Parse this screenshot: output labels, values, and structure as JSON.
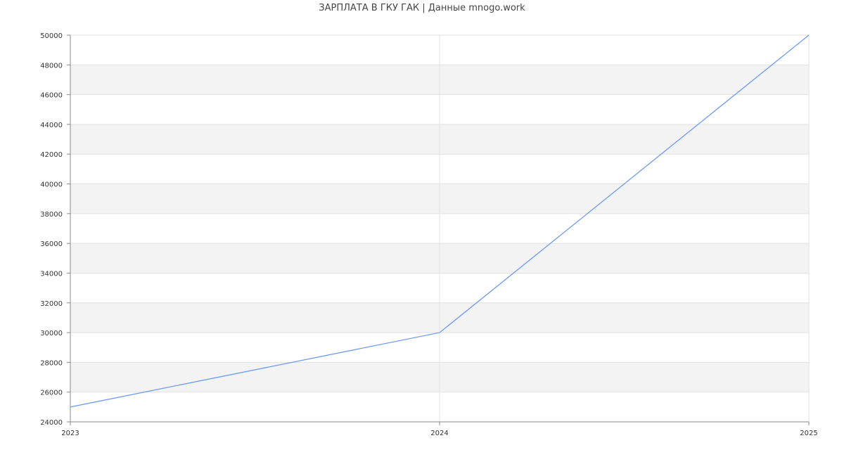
{
  "chart_data": {
    "type": "line",
    "title": "ЗАРПЛАТА В ГКУ ГАК | Данные mnogo.work",
    "x": [
      "2023",
      "2024",
      "2025"
    ],
    "series": [
      {
        "values": [
          25000,
          30000,
          50000
        ],
        "color": "#6d9af5"
      }
    ],
    "ylim": [
      24000,
      50000
    ],
    "yticks": [
      24000,
      26000,
      28000,
      30000,
      32000,
      34000,
      36000,
      38000,
      40000,
      42000,
      44000,
      46000,
      48000,
      50000
    ],
    "grid": true,
    "band_color": "#f3f3f3"
  }
}
